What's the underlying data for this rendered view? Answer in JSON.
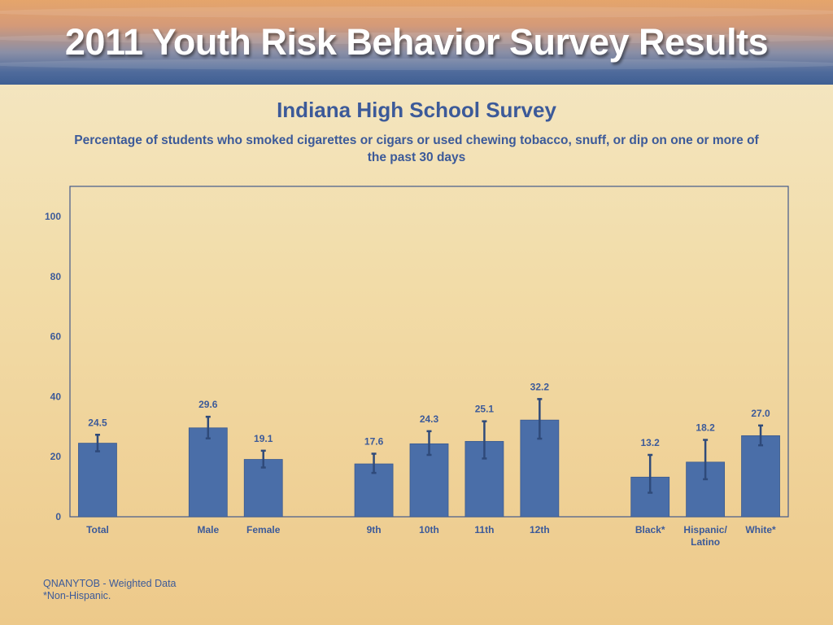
{
  "banner": {
    "title": "2011 Youth Risk Behavior Survey Results"
  },
  "chart_data": {
    "type": "bar",
    "title": "Indiana High School Survey",
    "subtitle": "Percentage of students who smoked cigarettes or cigars or used chewing tobacco, snuff, or dip on one or more of the past 30 days",
    "ylim": [
      0,
      100
    ],
    "yticks": [
      0,
      20,
      40,
      60,
      80,
      100
    ],
    "grid": false,
    "bar_color": "#4a6ea8",
    "groups": [
      {
        "categories": [
          {
            "label": "Total",
            "value": 24.5,
            "ci": [
              21.8,
              27.3
            ]
          }
        ]
      },
      {
        "categories": [
          {
            "label": "Male",
            "value": 29.6,
            "ci": [
              26.1,
              33.3
            ]
          },
          {
            "label": "Female",
            "value": 19.1,
            "ci": [
              16.4,
              22.0
            ]
          }
        ]
      },
      {
        "categories": [
          {
            "label": "9th",
            "value": 17.6,
            "ci": [
              14.6,
              21.0
            ]
          },
          {
            "label": "10th",
            "value": 24.3,
            "ci": [
              20.6,
              28.5
            ]
          },
          {
            "label": "11th",
            "value": 25.1,
            "ci": [
              19.4,
              31.8
            ]
          },
          {
            "label": "12th",
            "value": 32.2,
            "ci": [
              26.0,
              39.2
            ]
          }
        ]
      },
      {
        "categories": [
          {
            "label": "Black*",
            "value": 13.2,
            "ci": [
              8.0,
              20.6
            ]
          },
          {
            "label": "Hispanic/\nLatino",
            "value": 18.2,
            "ci": [
              12.5,
              25.6
            ]
          },
          {
            "label": "White*",
            "value": 27.0,
            "ci": [
              23.8,
              30.4
            ]
          }
        ]
      }
    ]
  },
  "footnotes": {
    "line1": "QNANYTOB - Weighted Data",
    "line2": "*Non-Hispanic."
  }
}
